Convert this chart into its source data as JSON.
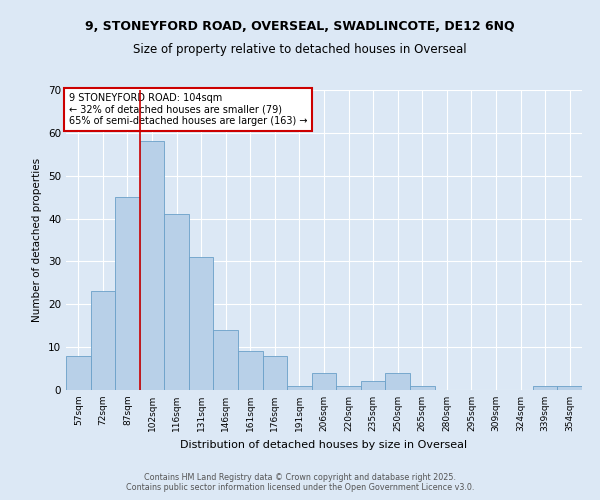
{
  "title1": "9, STONEYFORD ROAD, OVERSEAL, SWADLINCOTE, DE12 6NQ",
  "title2": "Size of property relative to detached houses in Overseal",
  "xlabel": "Distribution of detached houses by size in Overseal",
  "ylabel": "Number of detached properties",
  "categories": [
    "57sqm",
    "72sqm",
    "87sqm",
    "102sqm",
    "116sqm",
    "131sqm",
    "146sqm",
    "161sqm",
    "176sqm",
    "191sqm",
    "206sqm",
    "220sqm",
    "235sqm",
    "250sqm",
    "265sqm",
    "280sqm",
    "295sqm",
    "309sqm",
    "324sqm",
    "339sqm",
    "354sqm"
  ],
  "values": [
    8,
    23,
    45,
    58,
    41,
    31,
    14,
    9,
    8,
    1,
    4,
    1,
    2,
    4,
    1,
    0,
    0,
    0,
    0,
    1,
    1
  ],
  "bar_color": "#b8d0e8",
  "bar_edge_color": "#6aa0c8",
  "highlight_index": 3,
  "highlight_line_color": "#cc0000",
  "ylim": [
    0,
    70
  ],
  "yticks": [
    0,
    10,
    20,
    30,
    40,
    50,
    60,
    70
  ],
  "annotation_box_text": "9 STONEYFORD ROAD: 104sqm\n← 32% of detached houses are smaller (79)\n65% of semi-detached houses are larger (163) →",
  "annotation_box_color": "#cc0000",
  "background_color": "#dce8f5",
  "footer_line1": "Contains HM Land Registry data © Crown copyright and database right 2025.",
  "footer_line2": "Contains public sector information licensed under the Open Government Licence v3.0."
}
